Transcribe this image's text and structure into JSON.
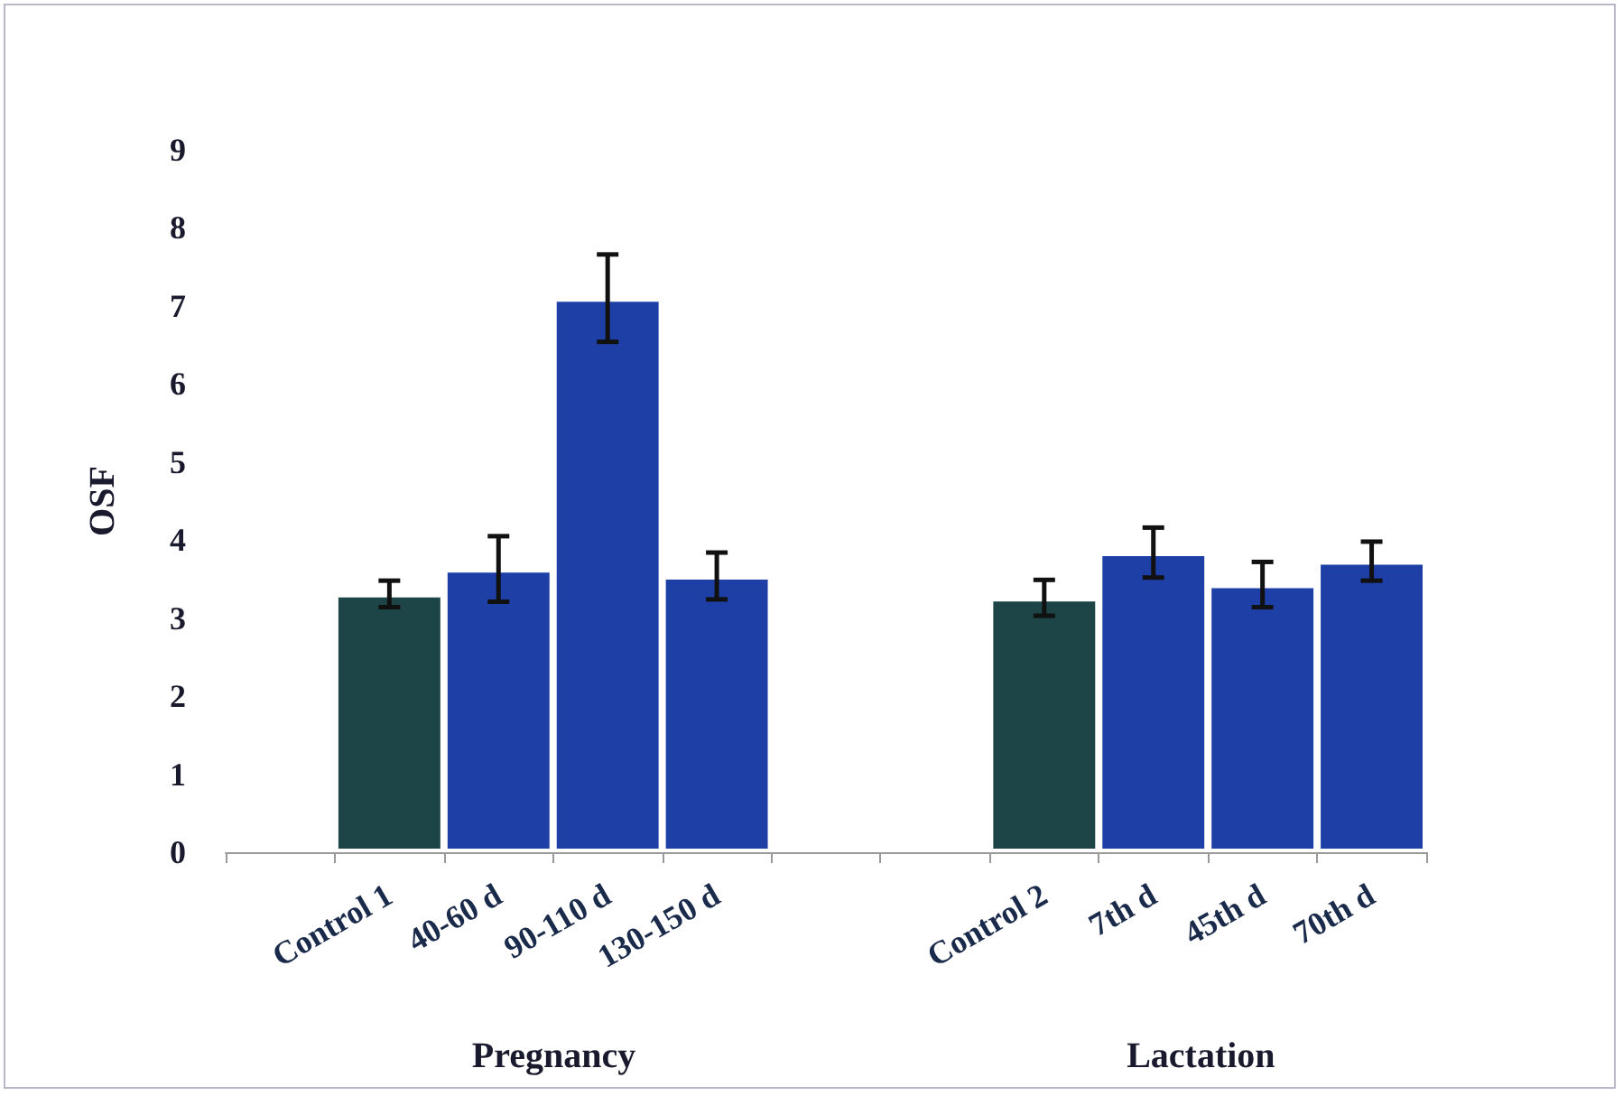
{
  "chart_data": {
    "type": "bar",
    "ylabel": "OSF",
    "categories": [
      null,
      "Control 1",
      "40-60 d",
      "90-110 d",
      "130-150 d",
      null,
      null,
      "Control 2",
      "7th d",
      "45th d",
      "70th d"
    ],
    "values": [
      null,
      3.31,
      3.63,
      7.1,
      3.54,
      null,
      null,
      3.26,
      3.84,
      3.43,
      3.73
    ],
    "errors": [
      null,
      0.17,
      0.42,
      0.56,
      0.3,
      null,
      null,
      0.23,
      0.32,
      0.29,
      0.25
    ],
    "colors": [
      "#1e3fa6",
      "#1d4547",
      "#1e3fa6",
      "#1e3fa6",
      "#1e3fa6",
      "#1e3fa6",
      "#1e3fa6",
      "#1d4547",
      "#1e3fa6",
      "#1e3fa6",
      "#1e3fa6"
    ],
    "ylim": [
      0,
      9
    ],
    "yticks": [
      0,
      1,
      2,
      3,
      4,
      5,
      6,
      7,
      8,
      9
    ],
    "grid": false,
    "annotations": [
      "Pregnancy",
      "Lactation"
    ]
  }
}
